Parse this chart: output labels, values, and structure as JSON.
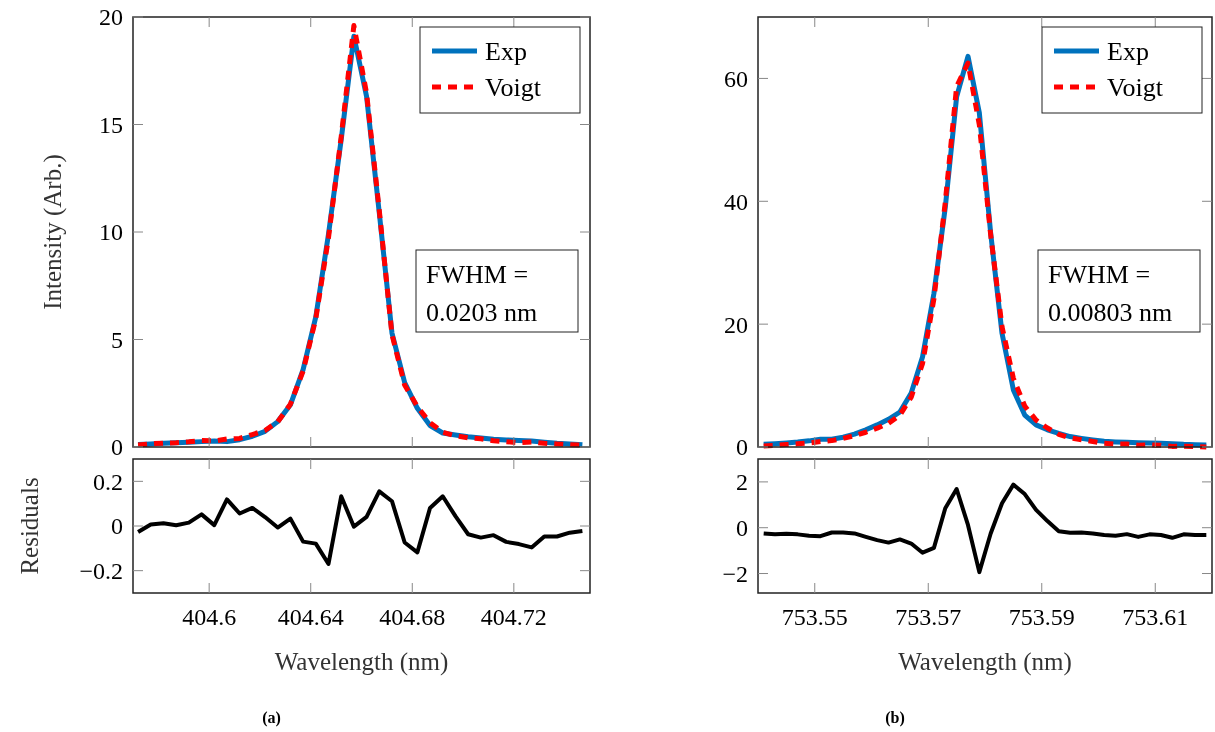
{
  "chart_data": [
    {
      "type": "line",
      "ylabel": "Intensity (Arb.)",
      "xlim": [
        404.57,
        404.75
      ],
      "ylim": [
        0,
        20
      ],
      "xticks": [
        404.6,
        404.64,
        404.68,
        404.72
      ],
      "yticks": [
        0,
        5,
        10,
        15,
        20
      ],
      "tick_labels": "y",
      "legend": "top right",
      "grid": false,
      "x": [
        404.572,
        404.577,
        404.582,
        404.587,
        404.592,
        404.597,
        404.602,
        404.607,
        404.612,
        404.617,
        404.622,
        404.627,
        404.632,
        404.637,
        404.642,
        404.647,
        404.652,
        404.657,
        404.662,
        404.667,
        404.672,
        404.677,
        404.682,
        404.687,
        404.692,
        404.697,
        404.702,
        404.707,
        404.712,
        404.717,
        404.722,
        404.727,
        404.732,
        404.737,
        404.742,
        404.747
      ],
      "annotations": [
        "FWHM =\n0.0203 nm"
      ],
      "series": [
        {
          "name": "Exp",
          "color": "#0072bd",
          "line_style": "solid",
          "values": [
            0.12,
            0.14,
            0.17,
            0.2,
            0.22,
            0.25,
            0.28,
            0.25,
            0.34,
            0.5,
            0.73,
            1.18,
            1.96,
            3.6,
            6.05,
            9.9,
            14.3,
            19.1,
            16.3,
            10.9,
            5.3,
            3.0,
            1.8,
            1.0,
            0.65,
            0.56,
            0.48,
            0.42,
            0.36,
            0.33,
            0.3,
            0.28,
            0.22,
            0.17,
            0.14,
            0.1
          ]
        },
        {
          "name": "Voigt",
          "color": "#ff0000",
          "line_style": "dashed",
          "values": [
            0.09,
            0.15,
            0.18,
            0.2,
            0.24,
            0.3,
            0.28,
            0.37,
            0.4,
            0.58,
            0.77,
            1.17,
            1.99,
            3.53,
            5.97,
            9.73,
            14.43,
            19.6,
            16.45,
            11.01,
            5.23,
            2.88,
            1.88,
            1.13,
            0.69,
            0.52,
            0.43,
            0.38,
            0.29,
            0.25,
            0.2,
            0.23,
            0.17,
            0.14,
            0.11,
            0.08
          ]
        }
      ]
    },
    {
      "type": "line",
      "ylabel": "Residuals",
      "xlabel": "Wavelength (nm)",
      "xlim": [
        404.57,
        404.75
      ],
      "ylim": [
        -0.3,
        0.3
      ],
      "xticks": [
        404.6,
        404.64,
        404.68,
        404.72
      ],
      "yticks": [
        {
          "value": -0.2,
          "label": "−0.2"
        },
        0,
        0.2
      ],
      "grid": false,
      "annotations": [
        "(a)"
      ],
      "x": [
        404.572,
        404.577,
        404.582,
        404.587,
        404.592,
        404.597,
        404.602,
        404.607,
        404.612,
        404.617,
        404.622,
        404.627,
        404.632,
        404.637,
        404.642,
        404.647,
        404.652,
        404.657,
        404.662,
        404.667,
        404.672,
        404.677,
        404.682,
        404.687,
        404.692,
        404.697,
        404.702,
        404.707,
        404.712,
        404.717,
        404.722,
        404.727,
        404.732,
        404.737,
        404.742,
        404.747
      ],
      "series": [
        {
          "color": "#000000",
          "line_style": "solid",
          "values": [
            -0.027,
            0.007,
            0.012,
            0.003,
            0.015,
            0.052,
            0.004,
            0.119,
            0.056,
            0.081,
            0.04,
            -0.007,
            0.033,
            -0.07,
            -0.079,
            -0.17,
            0.133,
            -0.003,
            0.041,
            0.155,
            0.111,
            -0.074,
            -0.118,
            0.081,
            0.133,
            0.044,
            -0.037,
            -0.052,
            -0.041,
            -0.071,
            -0.081,
            -0.096,
            -0.047,
            -0.047,
            -0.03,
            -0.022
          ]
        }
      ]
    },
    {
      "type": "line",
      "xlim": [
        753.54,
        753.62
      ],
      "ylim": [
        0,
        70
      ],
      "xticks": [
        753.55,
        753.57,
        753.59,
        753.61
      ],
      "yticks": [
        0,
        20,
        40,
        60
      ],
      "tick_labels": "y",
      "legend": "top right",
      "grid": false,
      "x": [
        753.541,
        753.543,
        753.545,
        753.547,
        753.549,
        753.551,
        753.553,
        753.555,
        753.557,
        753.559,
        753.561,
        753.563,
        753.565,
        753.567,
        753.569,
        753.571,
        753.573,
        753.575,
        753.577,
        753.579,
        753.581,
        753.583,
        753.585,
        753.587,
        753.589,
        753.591,
        753.593,
        753.595,
        753.597,
        753.599,
        753.601,
        753.603,
        753.605,
        753.607,
        753.609,
        753.611,
        753.613,
        753.615,
        753.617,
        753.619
      ],
      "annotations": [
        "FWHM =\n0.00803 nm"
      ],
      "series": [
        {
          "name": "Exp",
          "color": "#0072bd",
          "line_style": "solid",
          "values": [
            0.43,
            0.54,
            0.65,
            0.8,
            1.0,
            1.25,
            1.25,
            1.6,
            2.1,
            2.8,
            3.6,
            4.5,
            5.7,
            8.8,
            14.7,
            25,
            39,
            57,
            63.6,
            54.4,
            34.8,
            18.5,
            9.3,
            5.2,
            3.6,
            2.8,
            2.2,
            1.7,
            1.4,
            1.14,
            0.92,
            0.82,
            0.76,
            0.7,
            0.65,
            0.6,
            0.54,
            0.43,
            0.38,
            0.33
          ]
        },
        {
          "name": "Voigt",
          "color": "#ff0000",
          "line_style": "dashed",
          "values": [
            0.18,
            0.25,
            0.39,
            0.51,
            0.65,
            0.88,
            1.04,
            1.39,
            1.85,
            2.4,
            3.06,
            3.85,
            5.19,
            8.11,
            13.61,
            24.12,
            39.85,
            58.69,
            62.5,
            52.46,
            34.55,
            19.57,
            11.18,
            6.67,
            4.38,
            3.09,
            2.05,
            1.48,
            1.19,
            0.89,
            0.6,
            0.47,
            0.48,
            0.3,
            0.36,
            0.28,
            0.1,
            0.14,
            0.06,
            0.01
          ]
        }
      ]
    },
    {
      "type": "line",
      "xlabel": "Wavelength (nm)",
      "xlim": [
        753.54,
        753.62
      ],
      "ylim": [
        -2.85,
        3
      ],
      "xticks": [
        753.55,
        753.57,
        753.59,
        753.61
      ],
      "yticks": [
        {
          "value": -2,
          "label": "−2"
        },
        0,
        2
      ],
      "grid": false,
      "annotations": [
        "(b)"
      ],
      "x": [
        753.541,
        753.543,
        753.545,
        753.547,
        753.549,
        753.551,
        753.553,
        753.555,
        753.557,
        753.559,
        753.561,
        753.563,
        753.565,
        753.567,
        753.569,
        753.571,
        753.573,
        753.575,
        753.577,
        753.579,
        753.581,
        753.583,
        753.585,
        753.587,
        753.589,
        753.591,
        753.593,
        753.595,
        753.597,
        753.599,
        753.601,
        753.603,
        753.605,
        753.607,
        753.609,
        753.611,
        753.613,
        753.615,
        753.617,
        753.619
      ],
      "series": [
        {
          "color": "#000000",
          "line_style": "solid",
          "values": [
            -0.25,
            -0.29,
            -0.26,
            -0.29,
            -0.35,
            -0.37,
            -0.21,
            -0.21,
            -0.25,
            -0.4,
            -0.54,
            -0.65,
            -0.51,
            -0.69,
            -1.09,
            -0.88,
            0.85,
            1.69,
            0.12,
            -1.94,
            -0.25,
            1.07,
            1.88,
            1.47,
            0.78,
            0.29,
            -0.15,
            -0.22,
            -0.21,
            -0.25,
            -0.32,
            -0.35,
            -0.28,
            -0.4,
            -0.29,
            -0.32,
            -0.44,
            -0.29,
            -0.32,
            -0.32
          ]
        }
      ]
    }
  ]
}
